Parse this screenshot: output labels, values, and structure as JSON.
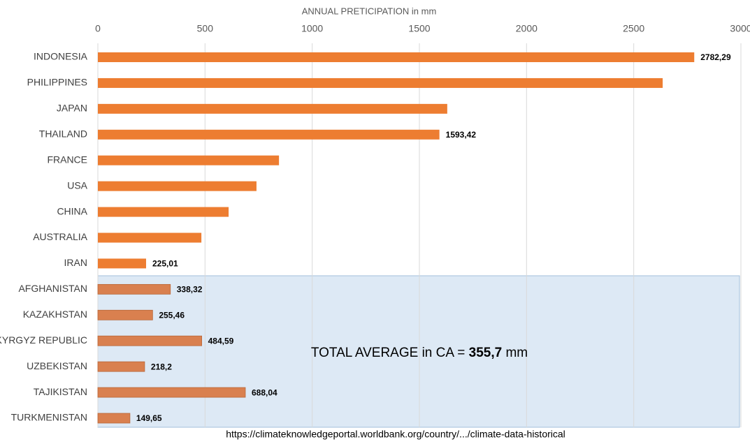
{
  "chart_data": {
    "type": "hbar",
    "title": "ANNUAL PRETICIPATION  in mm",
    "categories": [
      "INDONESIA",
      "PHILIPPINES",
      "JAPAN",
      "THAILAND",
      "FRANCE",
      "USA",
      "CHINA",
      "AUSTRALIA",
      "IRAN",
      "AFGHANISTAN",
      "KAZAKHSTAN",
      "KYRGYZ REPUBLIC",
      "UZBEKISTAN",
      "TAJIKISTAN",
      "TURKMENISTAN"
    ],
    "values": [
      2782.29,
      2635,
      1630,
      1593.42,
      845,
      740,
      610,
      483,
      225.01,
      338.32,
      255.46,
      484.59,
      218.2,
      688.04,
      149.65
    ],
    "value_labels": [
      "2782,29",
      null,
      null,
      "1593,42",
      null,
      null,
      null,
      null,
      "225,01",
      "338,32",
      "255,46",
      "484,59",
      "218,2",
      "688,04",
      "149,65"
    ],
    "colors": [
      "#ed7d31",
      "#ed7d31",
      "#ed7d31",
      "#ed7d31",
      "#ed7d31",
      "#ed7d31",
      "#ed7d31",
      "#ed7d31",
      "#ed7d31",
      "#d9804f",
      "#d9804f",
      "#d9804f",
      "#d9804f",
      "#d9804f",
      "#d9804f"
    ],
    "xlim": [
      0,
      3000
    ],
    "xticks": [
      0,
      500,
      1000,
      1500,
      2000,
      2500,
      3000
    ],
    "grid": true,
    "annotation": {
      "prefix": "TOTAL AVERAGE in CA = ",
      "value": "355,7",
      "suffix": " mm"
    },
    "source": "https://climateknowledgeportal.worldbank.org/country/.../climate-data-historical"
  }
}
